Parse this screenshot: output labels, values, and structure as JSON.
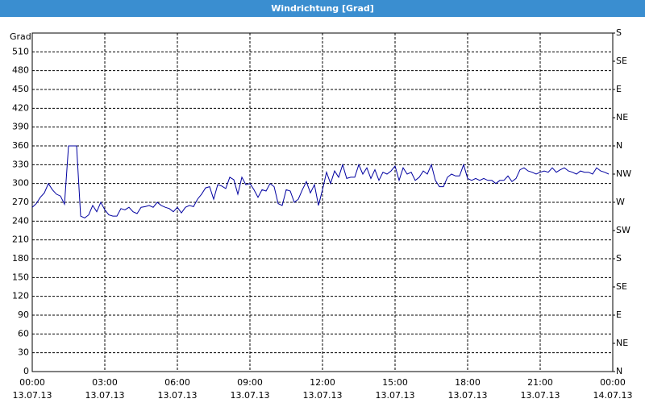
{
  "chart_data": {
    "type": "line",
    "title": "Windrichtung [Grad]",
    "y_label": "Grad",
    "x": [
      0,
      10,
      20,
      30,
      40,
      50,
      60,
      70,
      80,
      90,
      100,
      110,
      120,
      130,
      140,
      150,
      160,
      170,
      180,
      190,
      200,
      210,
      220,
      230,
      240,
      250,
      260,
      270,
      280,
      290,
      300,
      310,
      320,
      330,
      340,
      350,
      360,
      370,
      380,
      390,
      400,
      410,
      420,
      430,
      440,
      450,
      460,
      470,
      480,
      490,
      500,
      510,
      520,
      530,
      540,
      550,
      560,
      570,
      580,
      590,
      600,
      610,
      620,
      630,
      640,
      650,
      660,
      670,
      680,
      690,
      700,
      710,
      720,
      730,
      740,
      750,
      760,
      770,
      780,
      790,
      800,
      810,
      820,
      830,
      840,
      850,
      860,
      870,
      880,
      890,
      900,
      910,
      920,
      930,
      940,
      950,
      960,
      970,
      980,
      990,
      1000,
      1010,
      1020,
      1030,
      1040,
      1050,
      1060,
      1070,
      1080,
      1090,
      1100,
      1110,
      1120,
      1130,
      1140,
      1150,
      1160,
      1170,
      1180,
      1190,
      1200,
      1210,
      1220,
      1230,
      1240,
      1250,
      1260,
      1270,
      1280,
      1290,
      1300,
      1310,
      1320,
      1330,
      1340,
      1350,
      1360,
      1370,
      1380,
      1390,
      1400,
      1410,
      1420,
      1430
    ],
    "series": [
      {
        "color": "#0000a0",
        "values": [
          262,
          268,
          278,
          285,
          300,
          290,
          283,
          280,
          267,
          360,
          360,
          360,
          248,
          245,
          250,
          265,
          255,
          270,
          258,
          250,
          248,
          248,
          260,
          258,
          262,
          255,
          252,
          262,
          263,
          265,
          262,
          270,
          265,
          262,
          260,
          255,
          262,
          253,
          262,
          265,
          263,
          275,
          283,
          293,
          295,
          275,
          298,
          296,
          292,
          310,
          306,
          283,
          310,
          298,
          300,
          290,
          278,
          290,
          288,
          300,
          295,
          268,
          265,
          290,
          288,
          270,
          275,
          290,
          303,
          285,
          298,
          265,
          290,
          318,
          300,
          320,
          310,
          330,
          308,
          310,
          310,
          330,
          315,
          325,
          308,
          322,
          305,
          318,
          315,
          320,
          328,
          305,
          325,
          315,
          318,
          305,
          310,
          320,
          315,
          330,
          305,
          295,
          295,
          310,
          315,
          312,
          312,
          330,
          308,
          305,
          308,
          305,
          308,
          305,
          305,
          300,
          305,
          305,
          312,
          303,
          308,
          322,
          325,
          320,
          318,
          315,
          318,
          320,
          318,
          325,
          318,
          322,
          325,
          320,
          318,
          315,
          320,
          318,
          318,
          315,
          325,
          320,
          318,
          315
        ]
      }
    ],
    "xlim": [
      0,
      1440
    ],
    "xticks": [
      {
        "value": 0,
        "label": "00:00",
        "date": "13.07.13"
      },
      {
        "value": 180,
        "label": "03:00",
        "date": "13.07.13"
      },
      {
        "value": 360,
        "label": "06:00",
        "date": "13.07.13"
      },
      {
        "value": 540,
        "label": "09:00",
        "date": "13.07.13"
      },
      {
        "value": 720,
        "label": "12:00",
        "date": "13.07.13"
      },
      {
        "value": 900,
        "label": "15:00",
        "date": "13.07.13"
      },
      {
        "value": 1080,
        "label": "18:00",
        "date": "13.07.13"
      },
      {
        "value": 1260,
        "label": "21:00",
        "date": "13.07.13"
      },
      {
        "value": 1440,
        "label": "00:00",
        "date": "14.07.13"
      }
    ],
    "ylim": [
      0,
      540
    ],
    "yticks": [
      0,
      30,
      60,
      90,
      120,
      150,
      180,
      210,
      240,
      270,
      300,
      330,
      360,
      390,
      420,
      450,
      480,
      510
    ],
    "y2lim": [
      0,
      540
    ],
    "y2ticks": [
      {
        "value": 0,
        "label": "N"
      },
      {
        "value": 45,
        "label": "NE"
      },
      {
        "value": 90,
        "label": "E"
      },
      {
        "value": 135,
        "label": "SE"
      },
      {
        "value": 180,
        "label": "S"
      },
      {
        "value": 225,
        "label": "SW"
      },
      {
        "value": 270,
        "label": "W"
      },
      {
        "value": 315,
        "label": "NW"
      },
      {
        "value": 360,
        "label": "N"
      },
      {
        "value": 405,
        "label": "NE"
      },
      {
        "value": 450,
        "label": "E"
      },
      {
        "value": 495,
        "label": "SE"
      },
      {
        "value": 540,
        "label": "S"
      }
    ],
    "grid": true
  }
}
